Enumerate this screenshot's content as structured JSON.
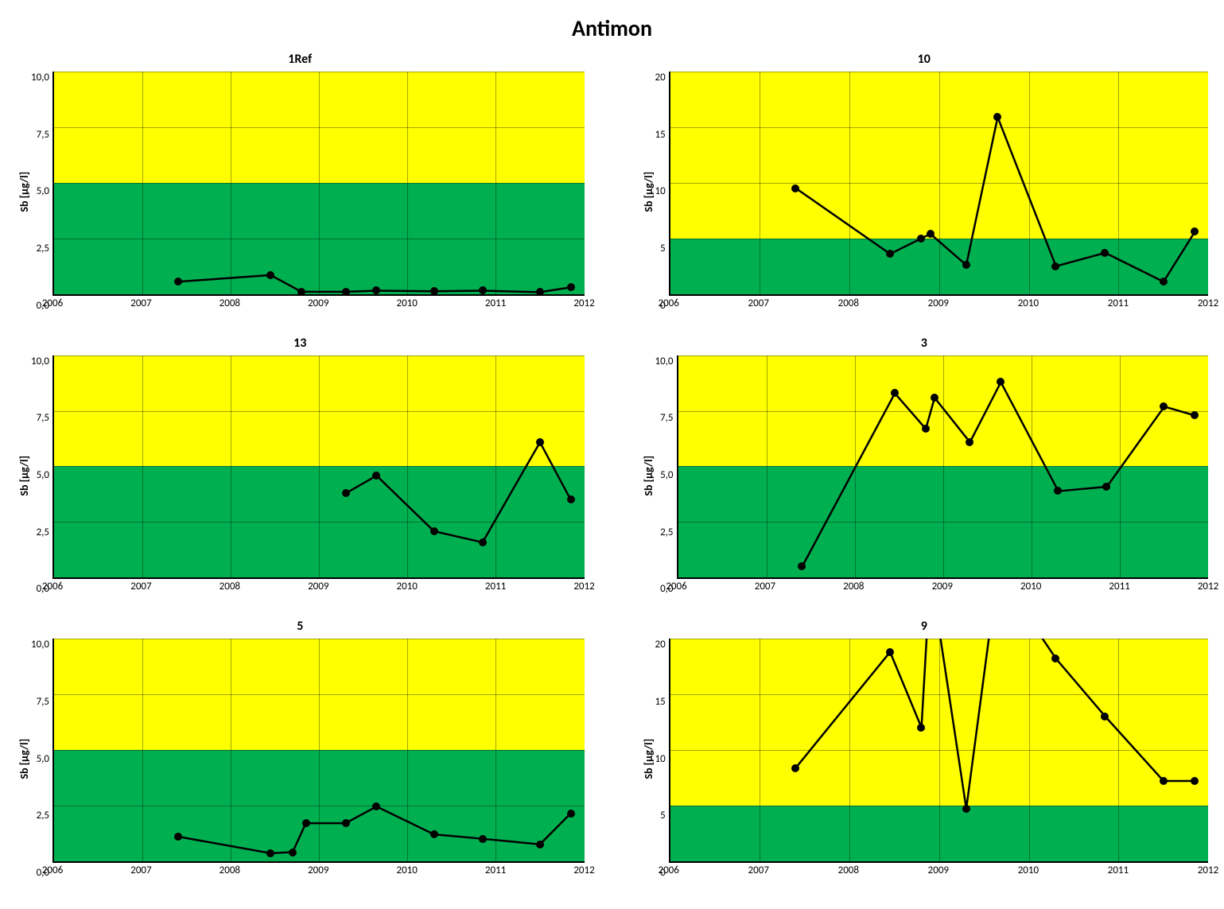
{
  "title": "Antimon",
  "common": {
    "ylabel": "Sb [µg/l]",
    "xlim": [
      2006,
      2012
    ],
    "xtick_step": 1,
    "background_color": "#ffffff",
    "grid_color": "#595959",
    "line_color": "#000000",
    "line_width": 2.5,
    "marker_size": 5,
    "title_fontsize": 16,
    "label_fontsize": 14,
    "tick_fontsize": 13,
    "band_green_color": "#00b050",
    "band_yellow_color": "#ffff00",
    "band_threshold": 5
  },
  "panels": [
    {
      "title": "1Ref",
      "type": "line",
      "ylim": [
        0,
        10
      ],
      "ytick_step": 2.5,
      "ytick_format": "comma1",
      "x": [
        2007.4,
        2008.45,
        2008.8,
        2009.3,
        2009.65,
        2010.3,
        2010.85,
        2011.5,
        2011.85
      ],
      "y": [
        0.55,
        0.85,
        0.1,
        0.1,
        0.15,
        0.12,
        0.15,
        0.08,
        0.3
      ]
    },
    {
      "title": "10",
      "type": "line",
      "ylim": [
        0,
        20
      ],
      "ytick_step": 5,
      "ytick_format": "int",
      "x": [
        2007.4,
        2008.45,
        2008.8,
        2008.9,
        2009.3,
        2009.65,
        2010.3,
        2010.85,
        2011.5,
        2011.85
      ],
      "y": [
        9.5,
        3.6,
        5.0,
        5.4,
        2.6,
        15.9,
        2.5,
        3.7,
        1.1,
        5.6
      ]
    },
    {
      "title": "13",
      "type": "line",
      "ylim": [
        0,
        10
      ],
      "ytick_step": 2.5,
      "ytick_format": "comma1",
      "x": [
        2009.3,
        2009.65,
        2010.3,
        2010.85,
        2011.5,
        2011.85
      ],
      "y": [
        3.8,
        4.6,
        2.1,
        1.6,
        6.1,
        3.5
      ]
    },
    {
      "title": "3",
      "type": "line",
      "ylim": [
        0,
        10
      ],
      "ytick_step": 2.5,
      "ytick_format": "comma1",
      "x": [
        2007.4,
        2008.45,
        2008.8,
        2008.9,
        2009.3,
        2009.65,
        2010.3,
        2010.85,
        2011.5,
        2011.85
      ],
      "y": [
        0.5,
        8.3,
        6.7,
        8.1,
        6.1,
        8.8,
        3.9,
        4.1,
        7.7,
        7.3
      ]
    },
    {
      "title": "5",
      "type": "line",
      "ylim": [
        0,
        10
      ],
      "ytick_step": 2.5,
      "ytick_format": "comma1",
      "x": [
        2007.4,
        2008.45,
        2008.7,
        2008.85,
        2009.3,
        2009.65,
        2010.3,
        2010.85,
        2011.5,
        2011.85
      ],
      "y": [
        1.1,
        0.35,
        0.4,
        1.7,
        1.7,
        2.45,
        1.2,
        1.0,
        0.75,
        2.15
      ]
    },
    {
      "title": "9",
      "type": "line",
      "ylim": [
        0,
        20
      ],
      "ytick_step": 5,
      "ytick_format": "int",
      "x": [
        2007.4,
        2008.45,
        2008.8,
        2008.9,
        2009.3,
        2009.65,
        2010.3,
        2010.85,
        2011.5,
        2011.85
      ],
      "y": [
        8.4,
        18.8,
        12.0,
        26.0,
        4.7,
        26.0,
        18.2,
        13.0,
        7.2,
        7.2
      ]
    }
  ]
}
